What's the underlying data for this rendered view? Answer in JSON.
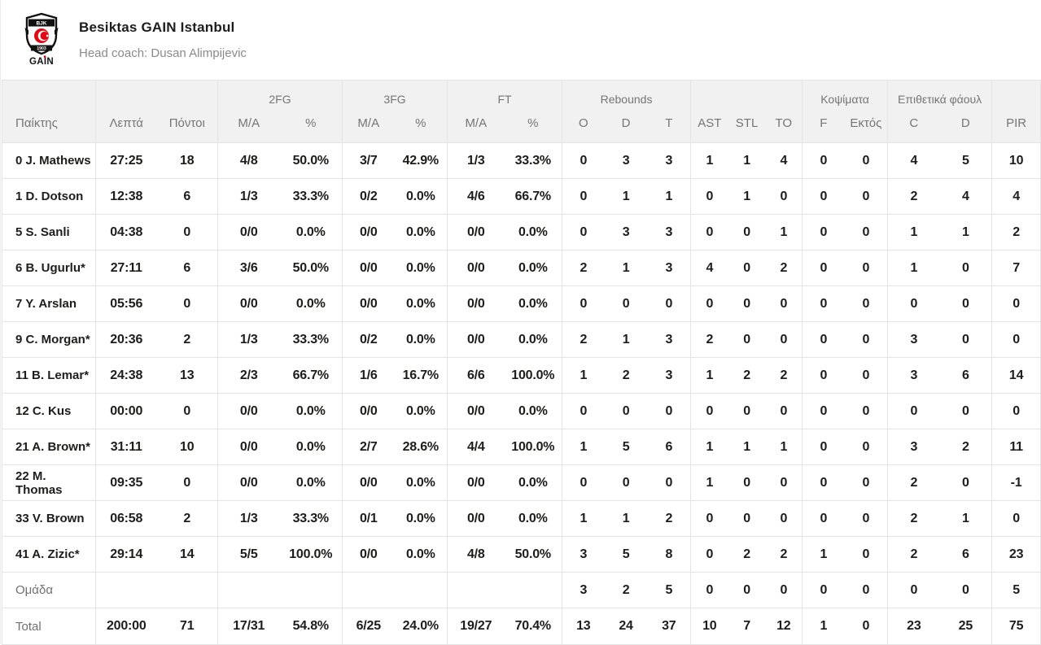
{
  "header": {
    "team_name": "Besiktas GAIN Istanbul",
    "coach": "Head coach: Dusan Alimpijevic",
    "logo": {
      "crest_top": "BJK",
      "crest_bottom": "1903",
      "wordmark": "GAIN"
    }
  },
  "colors": {
    "header_bg": "#f1f1f1",
    "border": "#e4e4e4",
    "accent_red": "#e30613",
    "text": "#1d1d1b",
    "muted": "#757575"
  },
  "table": {
    "groups": [
      {
        "label": "",
        "cols": [
          "Παίκτης"
        ]
      },
      {
        "label": "",
        "cols": [
          "Λεπτά",
          "Πόντοι"
        ]
      },
      {
        "label": "2FG",
        "cols": [
          "M/A",
          "%"
        ]
      },
      {
        "label": "3FG",
        "cols": [
          "M/A",
          "%"
        ]
      },
      {
        "label": "FT",
        "cols": [
          "M/A",
          "%"
        ]
      },
      {
        "label": "Rebounds",
        "cols": [
          "O",
          "D",
          "T"
        ]
      },
      {
        "label": "",
        "cols": [
          "AST",
          "STL",
          "TO"
        ]
      },
      {
        "label": "Κοψίματα",
        "cols": [
          "F",
          "Εκτός"
        ]
      },
      {
        "label": "Επιθετικά φάουλ",
        "cols": [
          "C",
          "D"
        ]
      },
      {
        "label": "",
        "cols": [
          "PIR"
        ]
      }
    ],
    "players": [
      [
        "0 J. Mathews",
        "27:25",
        "18",
        "4/8",
        "50.0%",
        "3/7",
        "42.9%",
        "1/3",
        "33.3%",
        "0",
        "3",
        "3",
        "1",
        "1",
        "4",
        "0",
        "0",
        "4",
        "5",
        "10"
      ],
      [
        "1 D. Dotson",
        "12:38",
        "6",
        "1/3",
        "33.3%",
        "0/2",
        "0.0%",
        "4/6",
        "66.7%",
        "0",
        "1",
        "1",
        "0",
        "1",
        "0",
        "0",
        "0",
        "2",
        "4",
        "4"
      ],
      [
        "5 S. Sanli",
        "04:38",
        "0",
        "0/0",
        "0.0%",
        "0/0",
        "0.0%",
        "0/0",
        "0.0%",
        "0",
        "3",
        "3",
        "0",
        "0",
        "1",
        "0",
        "0",
        "1",
        "1",
        "2"
      ],
      [
        "6 B. Ugurlu*",
        "27:11",
        "6",
        "3/6",
        "50.0%",
        "0/0",
        "0.0%",
        "0/0",
        "0.0%",
        "2",
        "1",
        "3",
        "4",
        "0",
        "2",
        "0",
        "0",
        "1",
        "0",
        "7"
      ],
      [
        "7 Y. Arslan",
        "05:56",
        "0",
        "0/0",
        "0.0%",
        "0/0",
        "0.0%",
        "0/0",
        "0.0%",
        "0",
        "0",
        "0",
        "0",
        "0",
        "0",
        "0",
        "0",
        "0",
        "0",
        "0"
      ],
      [
        "9 C. Morgan*",
        "20:36",
        "2",
        "1/3",
        "33.3%",
        "0/2",
        "0.0%",
        "0/0",
        "0.0%",
        "2",
        "1",
        "3",
        "2",
        "0",
        "0",
        "0",
        "0",
        "3",
        "0",
        "0"
      ],
      [
        "11 B. Lemar*",
        "24:38",
        "13",
        "2/3",
        "66.7%",
        "1/6",
        "16.7%",
        "6/6",
        "100.0%",
        "1",
        "2",
        "3",
        "1",
        "2",
        "2",
        "0",
        "0",
        "3",
        "6",
        "14"
      ],
      [
        "12 C. Kus",
        "00:00",
        "0",
        "0/0",
        "0.0%",
        "0/0",
        "0.0%",
        "0/0",
        "0.0%",
        "0",
        "0",
        "0",
        "0",
        "0",
        "0",
        "0",
        "0",
        "0",
        "0",
        "0"
      ],
      [
        "21 A. Brown*",
        "31:11",
        "10",
        "0/0",
        "0.0%",
        "2/7",
        "28.6%",
        "4/4",
        "100.0%",
        "1",
        "5",
        "6",
        "1",
        "1",
        "1",
        "0",
        "0",
        "3",
        "2",
        "11"
      ],
      [
        "22 M. Thomas",
        "09:35",
        "0",
        "0/0",
        "0.0%",
        "0/0",
        "0.0%",
        "0/0",
        "0.0%",
        "0",
        "0",
        "0",
        "1",
        "0",
        "0",
        "0",
        "0",
        "2",
        "0",
        "-1"
      ],
      [
        "33 V. Brown",
        "06:58",
        "2",
        "1/3",
        "33.3%",
        "0/1",
        "0.0%",
        "0/0",
        "0.0%",
        "1",
        "1",
        "2",
        "0",
        "0",
        "0",
        "0",
        "0",
        "2",
        "1",
        "0"
      ],
      [
        "41 A. Zizic*",
        "29:14",
        "14",
        "5/5",
        "100.0%",
        "0/0",
        "0.0%",
        "4/8",
        "50.0%",
        "3",
        "5",
        "8",
        "0",
        "2",
        "2",
        "1",
        "0",
        "2",
        "6",
        "23"
      ]
    ],
    "team_row": [
      "Ομάδα",
      "",
      "",
      "",
      "",
      "",
      "",
      "",
      "",
      "3",
      "2",
      "5",
      "0",
      "0",
      "0",
      "0",
      "0",
      "0",
      "0",
      "5"
    ],
    "total_row": [
      "Total",
      "200:00",
      "71",
      "17/31",
      "54.8%",
      "6/25",
      "24.0%",
      "19/27",
      "70.4%",
      "13",
      "24",
      "37",
      "10",
      "7",
      "12",
      "1",
      "0",
      "23",
      "25",
      "75"
    ]
  }
}
